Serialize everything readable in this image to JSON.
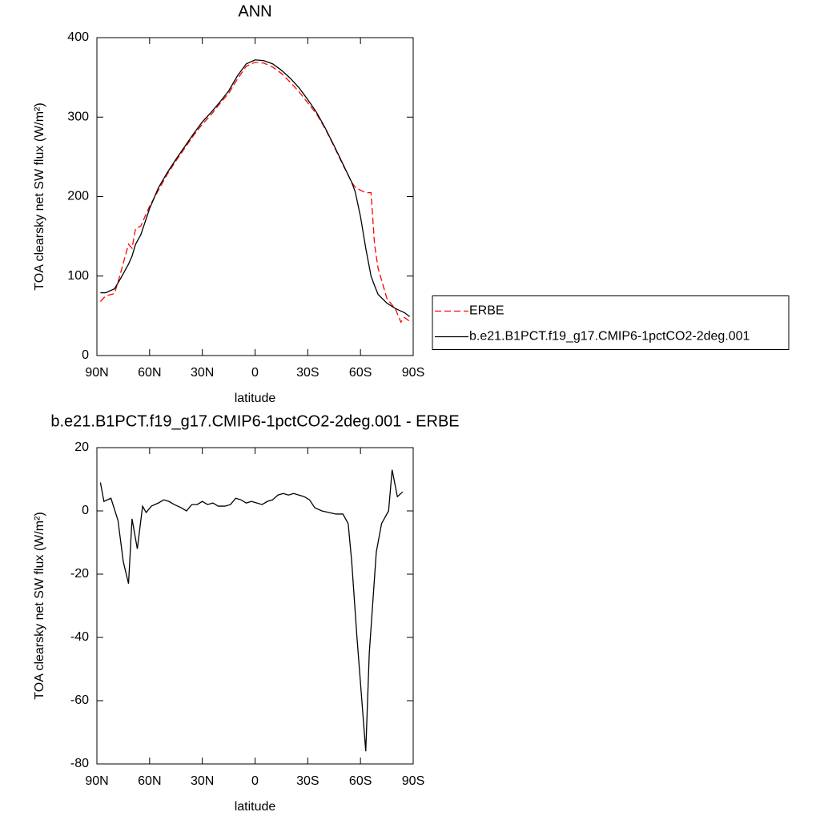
{
  "chart_data": [
    {
      "type": "line",
      "title": "ANN",
      "x_label": "latitude",
      "y_label": "TOA clearsky net SW flux (W/m²)",
      "x": [
        88,
        85,
        80,
        77,
        72,
        70,
        68,
        65,
        60,
        55,
        50,
        45,
        40,
        35,
        30,
        25,
        20,
        15,
        10,
        5,
        0,
        -5,
        -10,
        -15,
        -20,
        -25,
        -30,
        -35,
        -40,
        -45,
        -50,
        -55,
        -57,
        -60,
        -63,
        -66,
        -68,
        -70,
        -75,
        -80,
        -83,
        -85,
        -88
      ],
      "series": [
        {
          "name": "ERBE",
          "color": "#ff0000",
          "line_style": "dashed",
          "values": [
            68,
            75,
            78,
            100,
            140,
            135,
            160,
            163,
            188,
            208,
            228,
            245,
            261,
            277,
            291,
            303,
            317,
            330,
            348,
            364,
            369,
            368,
            363,
            355,
            344,
            332,
            318,
            304,
            285,
            263,
            240,
            218,
            212,
            208,
            205,
            205,
            140,
            110,
            72,
            58,
            42,
            48,
            43
          ]
        },
        {
          "name": "b.e21.B1PCT.f19_g17.CMIP6-1pctCO2-2deg.001",
          "color": "#000000",
          "line_style": "solid",
          "values": [
            79,
            79,
            84,
            95,
            115,
            125,
            140,
            152,
            185,
            211,
            230,
            247,
            263,
            279,
            294,
            306,
            319,
            333,
            352,
            367,
            372,
            371,
            367,
            359,
            349,
            337,
            322,
            306,
            286,
            264,
            241,
            218,
            206,
            175,
            135,
            100,
            88,
            77,
            66,
            59,
            56,
            54,
            49
          ]
        }
      ],
      "xlim": [
        90,
        -90
      ],
      "xticks": [
        {
          "value": 90,
          "label": "90N"
        },
        {
          "value": 60,
          "label": "60N"
        },
        {
          "value": 30,
          "label": "30N"
        },
        0,
        {
          "value": -30,
          "label": "30S"
        },
        {
          "value": -60,
          "label": "60S"
        },
        {
          "value": -90,
          "label": "90S"
        }
      ],
      "ylim": [
        0,
        400
      ],
      "yticks": [
        0,
        100,
        200,
        300,
        400
      ],
      "legend": "right"
    },
    {
      "type": "line",
      "title": "b.e21.B1PCT.f19_g17.CMIP6-1pctCO2-2deg.001 - ERBE",
      "x_label": "latitude",
      "y_label": "TOA clearsky net SW flux (W/m²)",
      "x": [
        88,
        86,
        82,
        78,
        75,
        72,
        70,
        67,
        64,
        62,
        59,
        55,
        52,
        49,
        46,
        42,
        39,
        36,
        33,
        30,
        27,
        24,
        21,
        17,
        14,
        11,
        8,
        5,
        2,
        -1,
        -4,
        -7,
        -10,
        -13,
        -16,
        -19,
        -22,
        -25,
        -28,
        -31,
        -34,
        -38,
        -42,
        -46,
        -50,
        -53,
        -55,
        -58,
        -63,
        -65,
        -69,
        -72,
        -76,
        -78,
        -81,
        -84
      ],
      "values": [
        9,
        3,
        4,
        -3,
        -16,
        -23,
        -2.5,
        -12,
        1.5,
        -0.5,
        1.5,
        2.5,
        3.5,
        3,
        2,
        1,
        0,
        2,
        2,
        3,
        2,
        2.5,
        1.5,
        1.5,
        2,
        4,
        3.5,
        2.5,
        3,
        2.5,
        2,
        3,
        3.5,
        5,
        5.5,
        5,
        5.5,
        5,
        4.5,
        3.5,
        1,
        0,
        -0.5,
        -1,
        -1,
        -4,
        -16,
        -40,
        -76,
        -45,
        -13,
        -4,
        0,
        13,
        4.5,
        6
      ],
      "color": "#000000",
      "xlim": [
        90,
        -90
      ],
      "xticks": [
        {
          "value": 90,
          "label": "90N"
        },
        {
          "value": 60,
          "label": "60N"
        },
        {
          "value": 30,
          "label": "30N"
        },
        0,
        {
          "value": -30,
          "label": "30S"
        },
        {
          "value": -60,
          "label": "60S"
        },
        {
          "value": -90,
          "label": "90S"
        }
      ],
      "ylim": [
        -80,
        20
      ],
      "yticks": [
        -80,
        -60,
        -40,
        -20,
        0,
        20
      ]
    }
  ]
}
